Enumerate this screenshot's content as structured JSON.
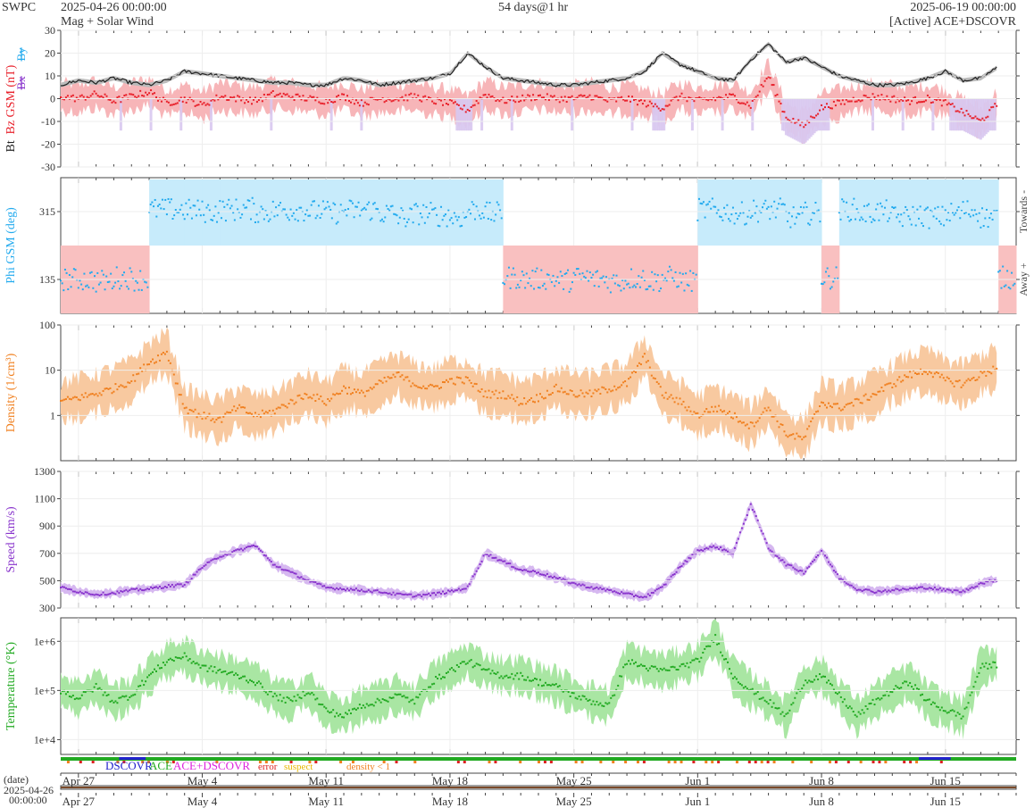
{
  "header": {
    "org": "SWPC",
    "start": "2025-04-26 00:00:00",
    "subtitle": "Mag + Solar Wind",
    "span": "54 days@1 hr",
    "end": "2025-06-19 00:00:00",
    "source": "[Active] ACE+DSCOVR"
  },
  "colors": {
    "bt": "#222222",
    "bz": "#e8202a",
    "by": "#22aaee",
    "bx": "#8833cc",
    "phi": "#22aaee",
    "away_fill": "#f9c0c0",
    "towards_fill": "#c7ebfb",
    "density": "#f08020",
    "speed": "#8833cc",
    "temperature": "#22aa22",
    "bz_fill": "#f7b5b8",
    "bz_neg_fill": "#d8c8f0"
  },
  "chart_data": [
    {
      "type": "line",
      "panel": "mag",
      "ylabel_parts": [
        "Bt",
        "Bz GSM (nT)",
        "Bx",
        "By"
      ],
      "ylim": [
        -30,
        30
      ],
      "yticks": [
        -30,
        -20,
        -10,
        0,
        10,
        20,
        30
      ],
      "x_days_from_start": [
        0,
        1,
        2,
        3,
        4,
        5,
        6,
        7,
        8,
        9,
        10,
        11,
        12,
        13,
        14,
        15,
        16,
        17,
        18,
        19,
        20,
        21,
        22,
        23,
        24,
        25,
        26,
        27,
        28,
        29,
        30,
        31,
        32,
        33,
        34,
        35,
        36,
        37,
        38,
        39,
        40,
        41,
        42,
        43,
        44,
        45,
        46,
        47,
        48,
        49,
        50,
        51,
        52,
        53
      ],
      "series": [
        {
          "name": "Bt",
          "values": [
            6,
            8,
            7,
            9,
            7,
            6,
            8,
            12,
            11,
            10,
            9,
            8,
            7,
            7,
            6,
            6,
            9,
            8,
            6,
            7,
            8,
            9,
            11,
            20,
            14,
            9,
            8,
            7,
            6,
            6,
            7,
            8,
            9,
            12,
            20,
            15,
            12,
            9,
            8,
            17,
            24,
            16,
            18,
            14,
            10,
            8,
            6,
            6,
            7,
            9,
            12,
            8,
            9,
            14
          ]
        },
        {
          "name": "Bz",
          "values": [
            1,
            0,
            2,
            -1,
            1,
            3,
            -2,
            0,
            -3,
            1,
            0,
            -1,
            2,
            1,
            0,
            -1,
            1,
            -2,
            0,
            0,
            1,
            -1,
            -2,
            -5,
            2,
            -1,
            0,
            1,
            0,
            0,
            1,
            -1,
            0,
            -2,
            -4,
            1,
            -1,
            0,
            1,
            -3,
            10,
            -8,
            -12,
            -4,
            -2,
            0,
            1,
            0,
            -1,
            0,
            -2,
            -6,
            -10,
            -2
          ]
        }
      ]
    },
    {
      "type": "scatter",
      "panel": "phi",
      "ylabel": "Phi GSM (deg)",
      "yticks": [
        135,
        315
      ],
      "ylim": [
        45,
        405
      ],
      "right_labels": [
        "Towards -",
        "Away +"
      ],
      "x_days_from_start": [
        0,
        1,
        2,
        3,
        4,
        5,
        6,
        7,
        8,
        9,
        10,
        11,
        12,
        13,
        14,
        15,
        16,
        17,
        18,
        19,
        20,
        21,
        22,
        23,
        24,
        25,
        26,
        27,
        28,
        29,
        30,
        31,
        32,
        33,
        34,
        35,
        36,
        37,
        38,
        39,
        40,
        41,
        42,
        43,
        44,
        45,
        46,
        47,
        48,
        49,
        50,
        51,
        52,
        53
      ],
      "values": [
        135,
        135,
        130,
        140,
        135,
        320,
        320,
        318,
        315,
        320,
        322,
        315,
        318,
        320,
        316,
        312,
        318,
        320,
        310,
        300,
        310,
        305,
        300,
        320,
        310,
        140,
        135,
        138,
        132,
        140,
        135,
        130,
        138,
        132,
        140,
        130,
        320,
        315,
        310,
        318,
        320,
        300,
        310,
        140,
        320,
        310,
        315,
        300,
        305,
        300,
        310,
        318,
        300,
        140
      ]
    },
    {
      "type": "area",
      "panel": "density",
      "ylabel": "Density (1/cm³)",
      "yscale": "log",
      "ylim": [
        0.1,
        100
      ],
      "yticks": [
        1,
        10,
        100
      ],
      "x_days_from_start": [
        0,
        1,
        2,
        3,
        4,
        5,
        6,
        7,
        8,
        9,
        10,
        11,
        12,
        13,
        14,
        15,
        16,
        17,
        18,
        19,
        20,
        21,
        22,
        23,
        24,
        25,
        26,
        27,
        28,
        29,
        30,
        31,
        32,
        33,
        34,
        35,
        36,
        37,
        38,
        39,
        40,
        41,
        42,
        43,
        44,
        45,
        46,
        47,
        48,
        49,
        50,
        51,
        52,
        53
      ],
      "values": [
        2,
        2.5,
        3,
        4,
        6,
        15,
        25,
        1.5,
        1,
        0.8,
        1.5,
        1,
        1.2,
        2,
        3,
        2,
        4,
        3,
        5,
        8,
        5,
        4,
        6,
        6,
        3,
        3,
        2,
        2.5,
        4,
        3,
        3,
        4,
        5,
        20,
        3,
        2,
        1,
        1.5,
        1,
        0.6,
        1.5,
        0.4,
        0.3,
        2,
        1.5,
        2,
        3,
        5,
        8,
        10,
        6,
        5,
        8,
        12
      ]
    },
    {
      "type": "line",
      "panel": "speed",
      "ylabel": "Speed (km/s)",
      "ylim": [
        300,
        1300
      ],
      "yticks": [
        300,
        500,
        700,
        900,
        1100,
        1300
      ],
      "x_days_from_start": [
        0,
        1,
        2,
        3,
        4,
        5,
        6,
        7,
        8,
        9,
        10,
        11,
        12,
        13,
        14,
        15,
        16,
        17,
        18,
        19,
        20,
        21,
        22,
        23,
        24,
        25,
        26,
        27,
        28,
        29,
        30,
        31,
        32,
        33,
        34,
        35,
        36,
        37,
        38,
        39,
        40,
        41,
        42,
        43,
        44,
        45,
        46,
        47,
        48,
        49,
        50,
        51,
        52,
        53
      ],
      "values": [
        450,
        420,
        400,
        410,
        430,
        440,
        460,
        470,
        600,
        680,
        720,
        760,
        620,
        560,
        500,
        450,
        440,
        430,
        420,
        400,
        390,
        400,
        420,
        450,
        700,
        640,
        580,
        560,
        520,
        480,
        450,
        430,
        400,
        380,
        450,
        600,
        720,
        750,
        700,
        1060,
        740,
        620,
        560,
        720,
        520,
        440,
        420,
        430,
        440,
        450,
        430,
        420,
        480,
        510
      ]
    },
    {
      "type": "line",
      "panel": "temperature",
      "ylabel": "Temperature (°K)",
      "yscale": "log",
      "ylim": [
        5000,
        3000000
      ],
      "yticks": [
        10000,
        100000,
        1000000
      ],
      "ytick_labels": [
        "1e+4",
        "1e+5",
        "1e+6"
      ],
      "x_days_from_start": [
        0,
        1,
        2,
        3,
        4,
        5,
        6,
        7,
        8,
        9,
        10,
        11,
        12,
        13,
        14,
        15,
        16,
        17,
        18,
        19,
        20,
        21,
        22,
        23,
        24,
        25,
        26,
        27,
        28,
        29,
        30,
        31,
        32,
        33,
        34,
        35,
        36,
        37,
        38,
        39,
        40,
        41,
        42,
        43,
        44,
        45,
        46,
        47,
        48,
        49,
        50,
        51,
        52,
        53
      ],
      "values": [
        100000,
        70000,
        120000,
        60000,
        80000,
        200000,
        400000,
        500000,
        300000,
        250000,
        200000,
        150000,
        80000,
        60000,
        100000,
        40000,
        30000,
        50000,
        60000,
        80000,
        60000,
        150000,
        250000,
        400000,
        250000,
        200000,
        200000,
        150000,
        120000,
        80000,
        60000,
        50000,
        400000,
        300000,
        250000,
        300000,
        400000,
        1200000,
        200000,
        100000,
        60000,
        30000,
        150000,
        200000,
        80000,
        30000,
        60000,
        100000,
        150000,
        60000,
        40000,
        30000,
        300000,
        350000
      ]
    }
  ],
  "status_bar": {
    "legend": [
      "DSCOVR",
      "ACE",
      "ACE+DSCOVR",
      "error",
      "suspect",
      "density < 1"
    ],
    "legend_colors": [
      "#2222cc",
      "#22aa22",
      "#dd22dd",
      "#dd2222",
      "#e8b800",
      "#f08020"
    ]
  },
  "x_axis": {
    "date_label": "(date)",
    "start_date": "2025-04-26",
    "start_time": "00:00:00",
    "ticks": [
      "Apr 27",
      "May 4",
      "May 11",
      "May 18",
      "May 25",
      "Jun 1",
      "Jun 8",
      "Jun 15"
    ]
  }
}
